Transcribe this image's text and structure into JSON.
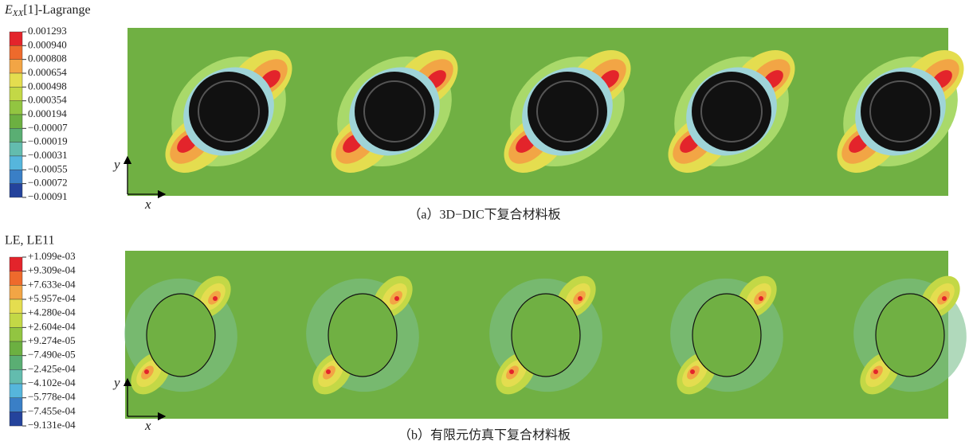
{
  "panel_a": {
    "legend": {
      "title": {
        "symbol": "E",
        "subscript": "XX",
        "suffix": "[1]-Lagrange"
      },
      "labels": [
        "0.001293",
        "0.000940",
        "0.000808",
        "0.000654",
        "0.000498",
        "0.000354",
        "0.000194",
        "−0.00007",
        "−0.00019",
        "−0.00031",
        "−0.00055",
        "−0.00072",
        "−0.00091"
      ]
    },
    "axis": {
      "y": "y",
      "x": "x"
    },
    "caption": "（a）3D−DIC下复合材料板"
  },
  "panel_b": {
    "legend": {
      "title": "LE, LE11",
      "labels": [
        "+1.099e-03",
        "+9.309e-04",
        "+7.633e-04",
        "+5.957e-04",
        "+4.280e-04",
        "+2.604e-04",
        "+9.274e-05",
        "−7.490e-05",
        "−2.425e-04",
        "−4.102e-04",
        "−5.778e-04",
        "−7.455e-04",
        "−9.131e-04"
      ]
    },
    "axis": {
      "y": "y",
      "x": "x"
    },
    "caption": "（b）有限元仿真下复合材料板"
  }
}
